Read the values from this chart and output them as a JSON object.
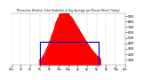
{
  "title": "Milwaukee Weather Solar Radiation & Day Average per Minute W/m2 (Today)",
  "bg_color": "#ffffff",
  "plot_bg_color": "#ffffff",
  "grid_color": "#aaaaaa",
  "solar_color": "#ff0000",
  "avg_color": "#0000cc",
  "ylim": [
    0,
    950
  ],
  "xlim": [
    0,
    1440
  ],
  "yticks": [
    100,
    200,
    300,
    400,
    500,
    600,
    700,
    800,
    900
  ],
  "xtick_positions": [
    0,
    120,
    240,
    360,
    480,
    600,
    720,
    840,
    960,
    1080,
    1200,
    1320,
    1440
  ],
  "xtick_labels": [
    "12a",
    "2a",
    "4a",
    "6a",
    "8a",
    "10a",
    "12p",
    "2p",
    "4p",
    "6p",
    "8p",
    "10p",
    "12a"
  ],
  "avg_rect_x1": 360,
  "avg_rect_x2": 1100,
  "avg_rect_y": 430,
  "solar_peak_x": 660,
  "solar_peak_y": 920,
  "solar_start_x": 350,
  "solar_end_x": 1130
}
